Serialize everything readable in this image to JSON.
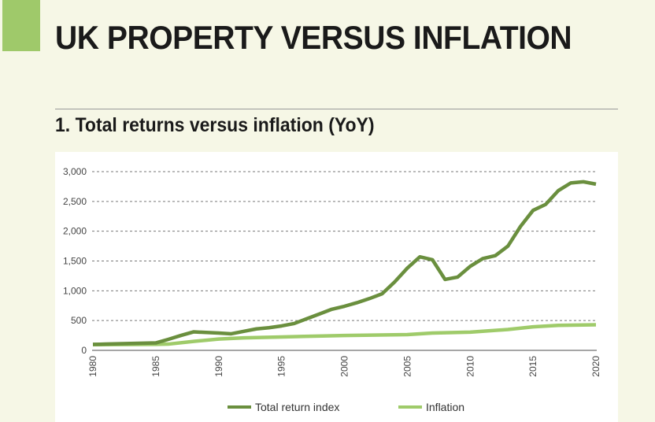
{
  "header": {
    "title": "UK PROPERTY VERSUS INFLATION",
    "accent_color": "#9fc96a"
  },
  "chart_data": {
    "type": "line",
    "title": "1. Total returns versus inflation (YoY)",
    "xlabel": "",
    "ylabel": "",
    "xlim": [
      1980,
      2020
    ],
    "ylim": [
      0,
      3000
    ],
    "x_ticks": [
      "1980",
      "1985",
      "1990",
      "1995",
      "2000",
      "2005",
      "2010",
      "2015",
      "2020"
    ],
    "y_ticks": [
      "0",
      "500",
      "1,000",
      "1,500",
      "2,000",
      "2,500",
      "3,000"
    ],
    "grid": "horizontal dashed",
    "legend_position": "bottom",
    "series": [
      {
        "name": "Total return index",
        "color": "#6a8f3e",
        "x": [
          1980,
          1981,
          1982,
          1983,
          1984,
          1985,
          1986,
          1987,
          1988,
          1989,
          1990,
          1991,
          1992,
          1993,
          1994,
          1995,
          1996,
          1997,
          1998,
          1999,
          2000,
          2001,
          2002,
          2003,
          2004,
          2005,
          2006,
          2007,
          2008,
          2009,
          2010,
          2011,
          2012,
          2013,
          2014,
          2015,
          2016,
          2017,
          2018,
          2019,
          2020
        ],
        "values": [
          100,
          105,
          110,
          115,
          120,
          125,
          185,
          250,
          310,
          300,
          290,
          278,
          320,
          360,
          380,
          410,
          450,
          530,
          610,
          690,
          740,
          800,
          870,
          950,
          1150,
          1380,
          1570,
          1520,
          1190,
          1230,
          1410,
          1540,
          1590,
          1750,
          2080,
          2350,
          2450,
          2680,
          2810,
          2830,
          2790
        ]
      },
      {
        "name": "Inflation",
        "color": "#9fcb6a",
        "x": [
          1980,
          1985,
          1986,
          1988,
          1990,
          1992,
          1995,
          2000,
          2005,
          2007,
          2010,
          2013,
          2015,
          2017,
          2020
        ],
        "values": [
          95,
          100,
          105,
          150,
          190,
          210,
          225,
          250,
          265,
          290,
          305,
          350,
          395,
          420,
          430
        ]
      }
    ]
  }
}
